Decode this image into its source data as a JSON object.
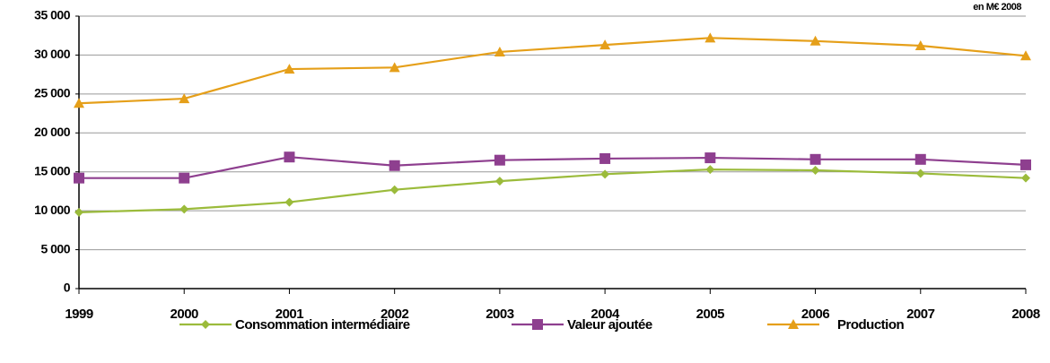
{
  "chart_data": {
    "type": "line",
    "annotation": "en M€ 2008",
    "x": [
      1999,
      2000,
      2001,
      2002,
      2003,
      2004,
      2005,
      2006,
      2007,
      2008
    ],
    "xlim": [
      1999,
      2008
    ],
    "xticks": [
      1999,
      2000,
      2001,
      2002,
      2003,
      2004,
      2005,
      2006,
      2007,
      2008
    ],
    "ylim": [
      0,
      35000
    ],
    "yticks": [
      0,
      {
        "value": 5000,
        "label": "5 000"
      },
      {
        "value": 10000,
        "label": "10 000"
      },
      {
        "value": 15000,
        "label": "15 000"
      },
      {
        "value": 20000,
        "label": "20 000"
      },
      {
        "value": 25000,
        "label": "25 000"
      },
      {
        "value": 30000,
        "label": "30 000"
      },
      {
        "value": 35000,
        "label": "35 000"
      }
    ],
    "grid": true,
    "legend": "bottom",
    "series": [
      {
        "name": "Consommation intermédiaire",
        "color": "#9bbb3b",
        "marker": "diamond",
        "values": [
          9800,
          10200,
          11100,
          12700,
          13800,
          14700,
          15300,
          15200,
          14800,
          14200
        ]
      },
      {
        "name": "Valeur ajoutée",
        "color": "#8e3f8f",
        "marker": "square",
        "values": [
          14200,
          14200,
          16900,
          15800,
          16500,
          16700,
          16800,
          16600,
          16600,
          15900
        ]
      },
      {
        "name": "Production",
        "color": "#e59f19",
        "marker": "triangle",
        "values": [
          23800,
          24400,
          28200,
          28400,
          30400,
          31300,
          32200,
          31800,
          31200,
          29900
        ]
      }
    ]
  }
}
